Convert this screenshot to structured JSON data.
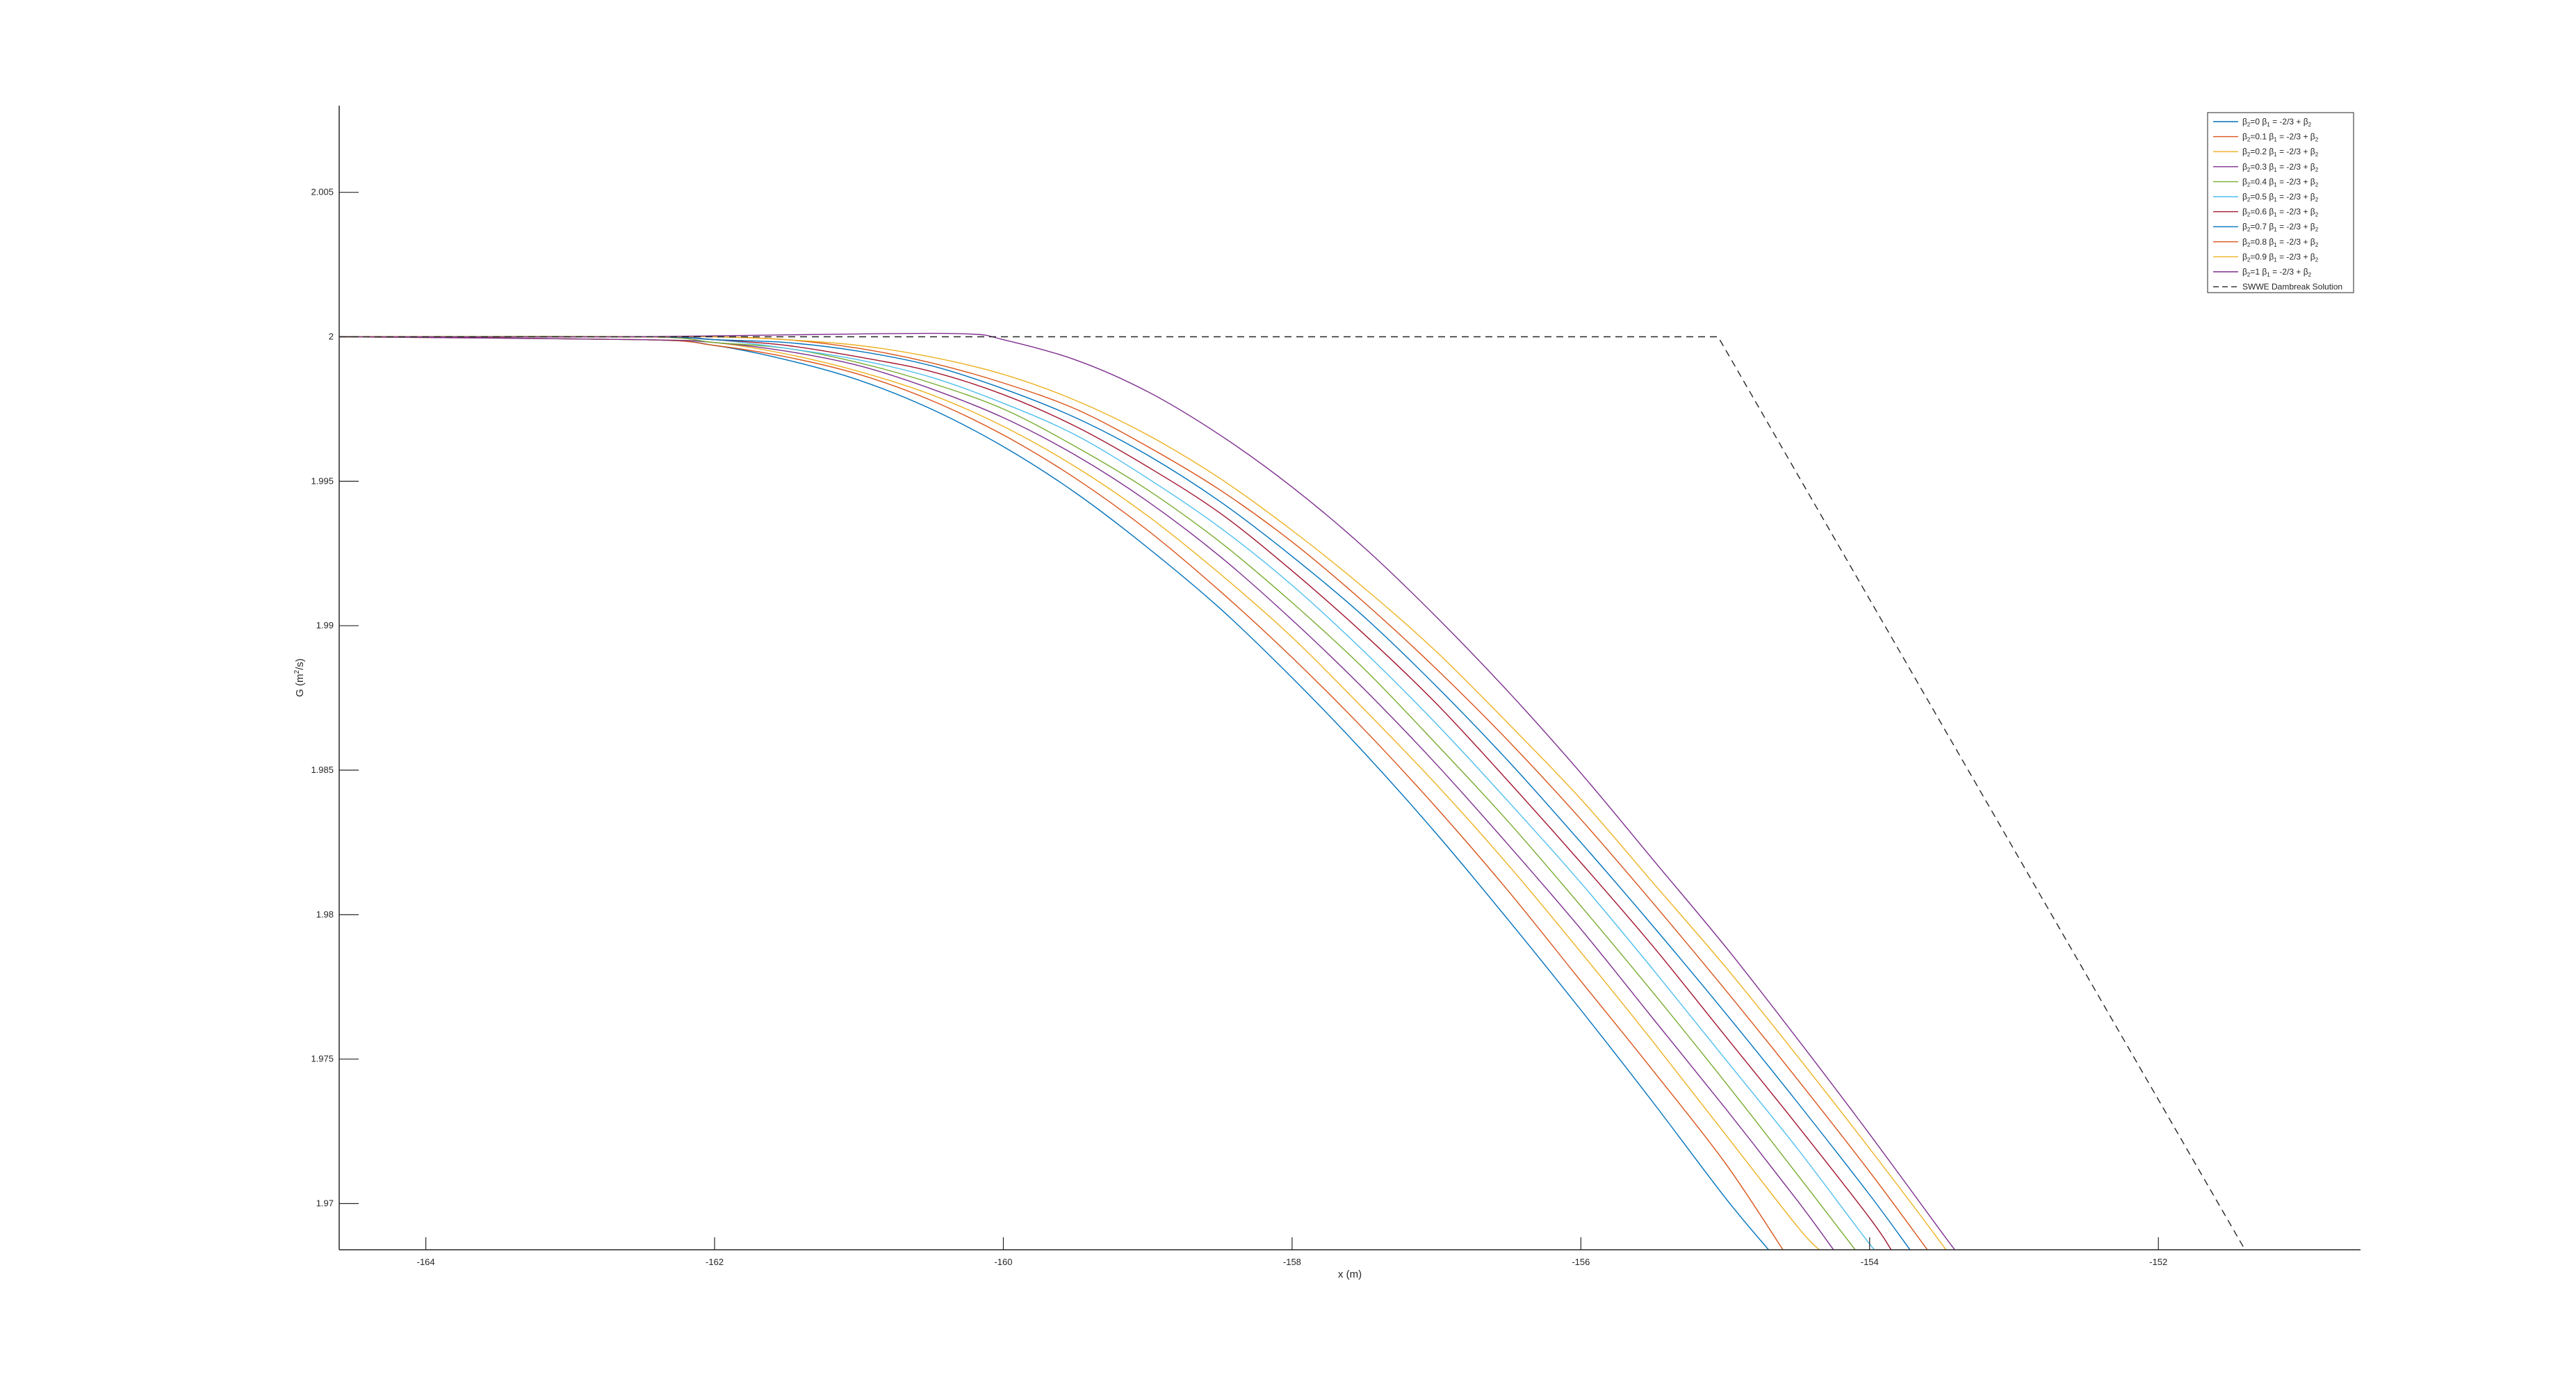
{
  "chart_data": {
    "type": "line",
    "title": "",
    "xlabel": "x (m)",
    "ylabel": "G (m",
    "ylabel_sup": "2",
    "ylabel_end": "/s)",
    "xlim": [
      -164.6,
      -150.6
    ],
    "ylim": [
      1.9684,
      2.008
    ],
    "x_ticks": [
      -164,
      -162,
      -160,
      -158,
      -156,
      -154,
      -152
    ],
    "y_ticks": [
      1.97,
      1.975,
      1.98,
      1.985,
      1.99,
      1.995,
      2,
      2.005
    ],
    "x_tick_labels": [
      "-164",
      "-162",
      "-160",
      "-158",
      "-156",
      "-154",
      "-152"
    ],
    "y_tick_labels": [
      "1.97",
      "1.975",
      "1.98",
      "1.985",
      "1.99",
      "1.995",
      "2",
      "2.005"
    ],
    "legend_position": "top-right",
    "legend_suffix": "= -2/3 +",
    "series": [
      {
        "beta2": "0",
        "color": "#0072BD",
        "points": [
          [
            -164.6,
            2.0
          ],
          [
            -162.5,
            1.9999
          ],
          [
            -162.0,
            1.9997
          ],
          [
            -161.5,
            1.9992
          ],
          [
            -161.0,
            1.9985
          ],
          [
            -160.5,
            1.9975
          ],
          [
            -160.0,
            1.9962
          ],
          [
            -159.5,
            1.9946
          ],
          [
            -159.0,
            1.9927
          ],
          [
            -158.5,
            1.9906
          ],
          [
            -158.0,
            1.9882
          ],
          [
            -157.5,
            1.9856
          ],
          [
            -157.0,
            1.9828
          ],
          [
            -156.5,
            1.9798
          ],
          [
            -156.0,
            1.9767
          ],
          [
            -155.5,
            1.9735
          ],
          [
            -155.0,
            1.9702
          ],
          [
            -154.7,
            1.9684
          ]
        ]
      },
      {
        "beta2": "0.1",
        "color": "#D95319",
        "points": [
          [
            -164.6,
            2.0
          ],
          [
            -162.5,
            1.9999
          ],
          [
            -162.0,
            1.9997
          ],
          [
            -161.5,
            1.9993
          ],
          [
            -161.0,
            1.9987
          ],
          [
            -160.5,
            1.9978
          ],
          [
            -160.0,
            1.9966
          ],
          [
            -159.5,
            1.9951
          ],
          [
            -159.0,
            1.9933
          ],
          [
            -158.5,
            1.9912
          ],
          [
            -158.0,
            1.9889
          ],
          [
            -157.5,
            1.9864
          ],
          [
            -157.0,
            1.9837
          ],
          [
            -156.5,
            1.9808
          ],
          [
            -156.0,
            1.9777
          ],
          [
            -155.5,
            1.9746
          ],
          [
            -155.0,
            1.9714
          ],
          [
            -154.6,
            1.9684
          ]
        ]
      },
      {
        "beta2": "0.2",
        "color": "#EDB120",
        "points": [
          [
            -164.6,
            2.0
          ],
          [
            -162.5,
            1.9999
          ],
          [
            -162.0,
            1.9998
          ],
          [
            -161.5,
            1.9994
          ],
          [
            -161.0,
            1.9988
          ],
          [
            -160.5,
            1.998
          ],
          [
            -160.0,
            1.9969
          ],
          [
            -159.5,
            1.9955
          ],
          [
            -159.0,
            1.9938
          ],
          [
            -158.5,
            1.9918
          ],
          [
            -158.0,
            1.9896
          ],
          [
            -157.5,
            1.9871
          ],
          [
            -157.0,
            1.9845
          ],
          [
            -156.5,
            1.9817
          ],
          [
            -156.0,
            1.9787
          ],
          [
            -155.5,
            1.9756
          ],
          [
            -155.0,
            1.9724
          ],
          [
            -154.5,
            1.9692
          ],
          [
            -154.35,
            1.9684
          ]
        ]
      },
      {
        "beta2": "0.3",
        "color": "#7E2F8E",
        "points": [
          [
            -164.6,
            2.0
          ],
          [
            -162.5,
            1.9999
          ],
          [
            -162.0,
            1.9998
          ],
          [
            -161.5,
            1.9995
          ],
          [
            -161.0,
            1.999
          ],
          [
            -160.5,
            1.9982
          ],
          [
            -160.0,
            1.9972
          ],
          [
            -159.5,
            1.9959
          ],
          [
            -159.0,
            1.9943
          ],
          [
            -158.5,
            1.9924
          ],
          [
            -158.0,
            1.9902
          ],
          [
            -157.5,
            1.9878
          ],
          [
            -157.0,
            1.9852
          ],
          [
            -156.5,
            1.9824
          ],
          [
            -156.0,
            1.9795
          ],
          [
            -155.5,
            1.9764
          ],
          [
            -155.0,
            1.9733
          ],
          [
            -154.5,
            1.9701
          ],
          [
            -154.25,
            1.9684
          ]
        ]
      },
      {
        "beta2": "0.4",
        "color": "#77AC30",
        "points": [
          [
            -164.6,
            2.0
          ],
          [
            -162.5,
            2.0
          ],
          [
            -162.0,
            1.9998
          ],
          [
            -161.5,
            1.9996
          ],
          [
            -161.0,
            1.9991
          ],
          [
            -160.5,
            1.9984
          ],
          [
            -160.0,
            1.9975
          ],
          [
            -159.5,
            1.9962
          ],
          [
            -159.0,
            1.9947
          ],
          [
            -158.5,
            1.9929
          ],
          [
            -158.0,
            1.9908
          ],
          [
            -157.5,
            1.9885
          ],
          [
            -157.0,
            1.9859
          ],
          [
            -156.5,
            1.9832
          ],
          [
            -156.0,
            1.9803
          ],
          [
            -155.5,
            1.9773
          ],
          [
            -155.0,
            1.9742
          ],
          [
            -154.5,
            1.971
          ],
          [
            -154.1,
            1.9684
          ]
        ]
      },
      {
        "beta2": "0.5",
        "color": "#4DBEEE",
        "points": [
          [
            -164.6,
            2.0
          ],
          [
            -162.5,
            2.0
          ],
          [
            -162.0,
            1.9999
          ],
          [
            -161.5,
            1.9996
          ],
          [
            -161.0,
            1.9992
          ],
          [
            -160.5,
            1.9986
          ],
          [
            -160.0,
            1.9977
          ],
          [
            -159.5,
            1.9966
          ],
          [
            -159.0,
            1.9951
          ],
          [
            -158.5,
            1.9934
          ],
          [
            -158.0,
            1.9914
          ],
          [
            -157.5,
            1.9891
          ],
          [
            -157.0,
            1.9866
          ],
          [
            -156.5,
            1.9839
          ],
          [
            -156.0,
            1.9811
          ],
          [
            -155.5,
            1.9781
          ],
          [
            -155.0,
            1.975
          ],
          [
            -154.5,
            1.9719
          ],
          [
            -154.0,
            1.9686
          ],
          [
            -153.95,
            1.9684
          ]
        ]
      },
      {
        "beta2": "0.6",
        "color": "#A2142F",
        "points": [
          [
            -164.6,
            2.0
          ],
          [
            -162.5,
            2.0
          ],
          [
            -162.0,
            1.9999
          ],
          [
            -161.5,
            1.9997
          ],
          [
            -161.0,
            1.9993
          ],
          [
            -160.5,
            1.9988
          ],
          [
            -160.0,
            1.998
          ],
          [
            -159.5,
            1.9969
          ],
          [
            -159.0,
            1.9955
          ],
          [
            -158.5,
            1.9939
          ],
          [
            -158.0,
            1.9919
          ],
          [
            -157.5,
            1.9897
          ],
          [
            -157.0,
            1.9873
          ],
          [
            -156.5,
            1.9846
          ],
          [
            -156.0,
            1.9818
          ],
          [
            -155.5,
            1.9789
          ],
          [
            -155.0,
            1.9758
          ],
          [
            -154.5,
            1.9727
          ],
          [
            -154.0,
            1.9695
          ],
          [
            -153.85,
            1.9684
          ]
        ]
      },
      {
        "beta2": "0.7",
        "color": "#0072BD",
        "points": [
          [
            -164.6,
            2.0
          ],
          [
            -162.5,
            2.0
          ],
          [
            -162.0,
            1.9999
          ],
          [
            -161.5,
            1.9998
          ],
          [
            -161.0,
            1.9995
          ],
          [
            -160.5,
            1.999
          ],
          [
            -160.0,
            1.9982
          ],
          [
            -159.5,
            1.9972
          ],
          [
            -159.0,
            1.9959
          ],
          [
            -158.5,
            1.9943
          ],
          [
            -158.0,
            1.9924
          ],
          [
            -157.5,
            1.9903
          ],
          [
            -157.0,
            1.9879
          ],
          [
            -156.5,
            1.9853
          ],
          [
            -156.0,
            1.9825
          ],
          [
            -155.5,
            1.9796
          ],
          [
            -155.0,
            1.9766
          ],
          [
            -154.5,
            1.9735
          ],
          [
            -154.0,
            1.9703
          ],
          [
            -153.72,
            1.9684
          ]
        ]
      },
      {
        "beta2": "0.8",
        "color": "#D95319",
        "points": [
          [
            -164.6,
            2.0
          ],
          [
            -162.5,
            2.0
          ],
          [
            -162.0,
            2.0
          ],
          [
            -161.5,
            1.9999
          ],
          [
            -161.0,
            1.9996
          ],
          [
            -160.5,
            1.9991
          ],
          [
            -160.0,
            1.9984
          ],
          [
            -159.5,
            1.9975
          ],
          [
            -159.0,
            1.9962
          ],
          [
            -158.5,
            1.9947
          ],
          [
            -158.0,
            1.9929
          ],
          [
            -157.5,
            1.9908
          ],
          [
            -157.0,
            1.9885
          ],
          [
            -156.5,
            1.986
          ],
          [
            -156.0,
            1.9833
          ],
          [
            -155.5,
            1.9804
          ],
          [
            -155.0,
            1.9774
          ],
          [
            -154.5,
            1.9743
          ],
          [
            -154.0,
            1.9711
          ],
          [
            -153.6,
            1.9684
          ]
        ]
      },
      {
        "beta2": "0.9",
        "color": "#EDB120",
        "points": [
          [
            -164.6,
            2.0
          ],
          [
            -162.5,
            2.0
          ],
          [
            -162.0,
            2.0
          ],
          [
            -161.5,
            1.9999
          ],
          [
            -161.0,
            1.9997
          ],
          [
            -160.5,
            1.9993
          ],
          [
            -160.0,
            1.9987
          ],
          [
            -159.5,
            1.9978
          ],
          [
            -159.0,
            1.9966
          ],
          [
            -158.5,
            1.9951
          ],
          [
            -158.0,
            1.9933
          ],
          [
            -157.5,
            1.9913
          ],
          [
            -157.0,
            1.9891
          ],
          [
            -156.5,
            1.9866
          ],
          [
            -156.0,
            1.984
          ],
          [
            -155.5,
            1.9811
          ],
          [
            -155.0,
            1.9782
          ],
          [
            -154.5,
            1.9751
          ],
          [
            -154.0,
            1.9719
          ],
          [
            -153.5,
            1.9686
          ],
          [
            -153.48,
            1.9684
          ]
        ]
      },
      {
        "beta2": "1",
        "color": "#7E2F8E",
        "points": [
          [
            -164.6,
            2.0
          ],
          [
            -162.5,
            2.0
          ],
          [
            -161.0,
            2.0001
          ],
          [
            -160.25,
            2.0001
          ],
          [
            -160.0,
            1.9999
          ],
          [
            -159.5,
            1.9992
          ],
          [
            -159.0,
            1.9981
          ],
          [
            -158.5,
            1.9966
          ],
          [
            -158.0,
            1.9948
          ],
          [
            -157.5,
            1.9927
          ],
          [
            -157.0,
            1.9903
          ],
          [
            -156.5,
            1.9877
          ],
          [
            -156.0,
            1.9849
          ],
          [
            -155.5,
            1.9819
          ],
          [
            -155.0,
            1.9789
          ],
          [
            -154.5,
            1.9757
          ],
          [
            -154.0,
            1.9724
          ],
          [
            -153.5,
            1.969
          ],
          [
            -153.41,
            1.9684
          ]
        ]
      }
    ],
    "reference_series": {
      "name": "SWWE Dambreak Solution",
      "color": "#262626",
      "style": "dashed",
      "points": [
        [
          -164.6,
          2.0
        ],
        [
          -155.05,
          2.0
        ],
        [
          -151.4,
          1.9684
        ]
      ]
    }
  }
}
